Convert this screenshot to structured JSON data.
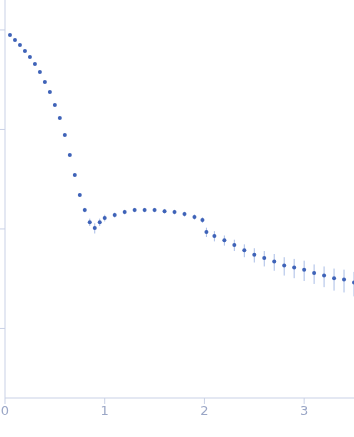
{
  "chart_data": {
    "type": "scatter",
    "log": "y",
    "tick_labels": "x",
    "color": "#3f63b8",
    "marker": "circle",
    "x": [
      0.05,
      0.1,
      0.15,
      0.2,
      0.25,
      0.3,
      0.35,
      0.4,
      0.45,
      0.5,
      0.55,
      0.6,
      0.65,
      0.7,
      0.75,
      0.8,
      0.85,
      0.9,
      0.95,
      1.0,
      1.1,
      1.2,
      1.3,
      1.4,
      1.5,
      1.6,
      1.7,
      1.8,
      1.9,
      1.98,
      2.02,
      2.1,
      2.2,
      2.3,
      2.4,
      2.5,
      2.6,
      2.7,
      2.8,
      2.9,
      3.0,
      3.1,
      3.2,
      3.3,
      3.4,
      3.5
    ],
    "values": [
      0.889,
      0.793,
      0.706,
      0.614,
      0.535,
      0.455,
      0.378,
      0.3,
      0.238,
      0.176,
      0.13,
      0.088,
      0.0553,
      0.0348,
      0.0219,
      0.0155,
      0.0117,
      0.0102,
      0.0117,
      0.0129,
      0.0138,
      0.0148,
      0.0155,
      0.0155,
      0.0155,
      0.0151,
      0.0148,
      0.0141,
      0.0132,
      0.0123,
      0.0093,
      0.0085,
      0.0077,
      0.0069,
      0.0061,
      0.0055,
      0.0051,
      0.0047,
      0.0043,
      0.0041,
      0.0039,
      0.0036,
      0.0034,
      0.0032,
      0.0031,
      0.0029
    ],
    "errors": [
      0.01,
      0.01,
      0.008,
      0.007,
      0.006,
      0.005,
      0.004,
      0.003,
      0.003,
      0.002,
      0.002,
      0.0015,
      0.001,
      0.001,
      0.0008,
      0.0008,
      0.001,
      0.0012,
      0.001,
      0.001,
      0.0008,
      0.0008,
      0.0008,
      0.0008,
      0.0008,
      0.0008,
      0.0008,
      0.0008,
      0.0008,
      0.0008,
      0.001,
      0.001,
      0.0009,
      0.0009,
      0.0009,
      0.0009,
      0.0009,
      0.0009,
      0.0009,
      0.0009,
      0.0009,
      0.0008,
      0.0008,
      0.0008,
      0.0008,
      0.0008
    ],
    "xlim": [
      0,
      3.5
    ],
    "xticks": [
      0,
      1,
      2,
      3
    ],
    "ylim": [
      0.0002,
      2
    ],
    "yticks": [
      0.001,
      0.01,
      0.1,
      1
    ]
  }
}
